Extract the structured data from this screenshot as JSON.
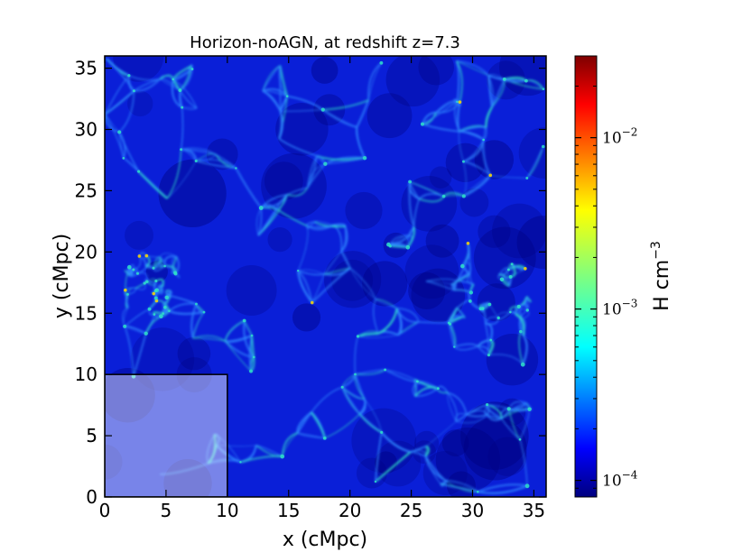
{
  "chart_data": {
    "type": "heatmap",
    "title": "Horizon-noAGN, at redshift z=7.3",
    "xlabel": "x (cMpc)",
    "ylabel": "y (cMpc)",
    "xlim": [
      0,
      36
    ],
    "ylim": [
      0,
      36
    ],
    "xticks": [
      0,
      5,
      10,
      15,
      20,
      25,
      30,
      35
    ],
    "yticks": [
      0,
      5,
      10,
      15,
      20,
      25,
      30,
      35
    ],
    "colormap": "jet",
    "colorbar": {
      "label": "H cm",
      "label_exponent": "−3",
      "scale": "log",
      "range": [
        8e-05,
        0.03
      ],
      "ticks": [
        {
          "value": 0.0001,
          "mantissa": "10",
          "exponent": "−4"
        },
        {
          "value": 0.001,
          "mantissa": "10",
          "exponent": "−3"
        },
        {
          "value": 0.01,
          "mantissa": "10",
          "exponent": "−2"
        }
      ]
    },
    "highlight_region": {
      "x": [
        0,
        10
      ],
      "y": [
        0,
        10
      ],
      "description": "translucent white overlay"
    },
    "typical_density_level": 0.00013,
    "filament_density_level": 0.0006
  },
  "colors": {
    "background": "#00007f",
    "field": "#0a1fd8",
    "filament": "#2e86ff",
    "node": "#2fe0c8",
    "hot": "#ffd800",
    "overlay": "#ffffff"
  }
}
